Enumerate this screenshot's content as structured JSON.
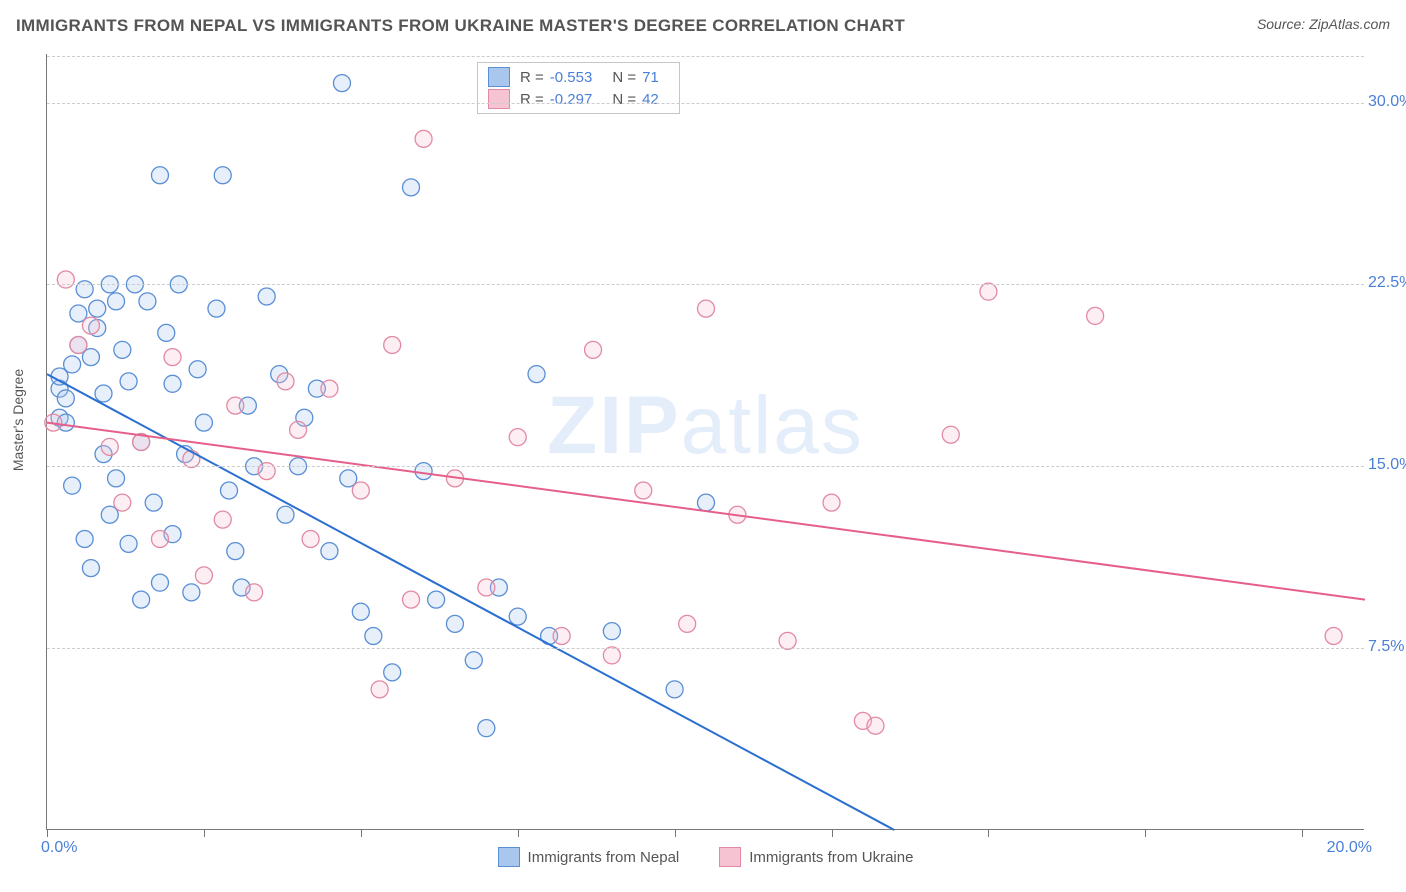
{
  "header": {
    "title": "IMMIGRANTS FROM NEPAL VS IMMIGRANTS FROM UKRAINE MASTER'S DEGREE CORRELATION CHART",
    "source_prefix": "Source: ",
    "source_name": "ZipAtlas.com"
  },
  "chart": {
    "type": "scatter",
    "ylabel": "Master's Degree",
    "xlim": [
      0,
      21
    ],
    "ylim": [
      0,
      32
    ],
    "x_ticks": [
      0,
      2.5,
      5,
      7.5,
      10,
      12.5,
      15,
      17.5,
      20
    ],
    "x_tick_labels": {
      "0": "0.0%",
      "20": "20.0%"
    },
    "y_gridlines": [
      7.5,
      15,
      22.5,
      30
    ],
    "y_tick_labels": {
      "7.5": "7.5%",
      "15": "15.0%",
      "22.5": "22.5%",
      "30": "30.0%"
    },
    "background_color": "#ffffff",
    "grid_color": "#cccccc",
    "axis_color": "#777777",
    "label_color": "#4a7fd8",
    "marker_radius": 8.5,
    "marker_stroke_width": 1.3,
    "marker_fill_opacity": 0.28,
    "line_width": 2,
    "watermark_text_bold": "ZIP",
    "watermark_text_rest": "atlas",
    "watermark_color": "#cfe0f7",
    "series": [
      {
        "id": "nepal",
        "label": "Immigrants from Nepal",
        "color_stroke": "#5a8fd6",
        "color_fill": "#a9c7ec",
        "line_color": "#2b6fd0",
        "R": "-0.553",
        "N": "71",
        "trend": {
          "x1": 0,
          "y1": 18.8,
          "x2": 13.5,
          "y2": 0
        },
        "points": [
          [
            0.2,
            17.0
          ],
          [
            0.2,
            18.2
          ],
          [
            0.2,
            18.7
          ],
          [
            0.3,
            16.8
          ],
          [
            0.3,
            17.8
          ],
          [
            0.4,
            14.2
          ],
          [
            0.4,
            19.2
          ],
          [
            0.5,
            20.0
          ],
          [
            0.5,
            21.3
          ],
          [
            0.6,
            22.3
          ],
          [
            0.6,
            12.0
          ],
          [
            0.7,
            19.5
          ],
          [
            0.7,
            10.8
          ],
          [
            0.8,
            20.7
          ],
          [
            0.8,
            21.5
          ],
          [
            0.9,
            15.5
          ],
          [
            0.9,
            18.0
          ],
          [
            1.0,
            22.5
          ],
          [
            1.0,
            13.0
          ],
          [
            1.1,
            14.5
          ],
          [
            1.1,
            21.8
          ],
          [
            1.2,
            19.8
          ],
          [
            1.3,
            11.8
          ],
          [
            1.3,
            18.5
          ],
          [
            1.4,
            22.5
          ],
          [
            1.5,
            9.5
          ],
          [
            1.5,
            16.0
          ],
          [
            1.6,
            21.8
          ],
          [
            1.7,
            13.5
          ],
          [
            1.8,
            27.0
          ],
          [
            1.8,
            10.2
          ],
          [
            1.9,
            20.5
          ],
          [
            2.0,
            12.2
          ],
          [
            2.0,
            18.4
          ],
          [
            2.1,
            22.5
          ],
          [
            2.2,
            15.5
          ],
          [
            2.3,
            9.8
          ],
          [
            2.4,
            19.0
          ],
          [
            2.5,
            16.8
          ],
          [
            2.7,
            21.5
          ],
          [
            2.8,
            27.0
          ],
          [
            2.9,
            14.0
          ],
          [
            3.0,
            11.5
          ],
          [
            3.1,
            10.0
          ],
          [
            3.2,
            17.5
          ],
          [
            3.3,
            15.0
          ],
          [
            3.5,
            22.0
          ],
          [
            3.7,
            18.8
          ],
          [
            3.8,
            13.0
          ],
          [
            4.0,
            15.0
          ],
          [
            4.1,
            17.0
          ],
          [
            4.3,
            18.2
          ],
          [
            4.5,
            11.5
          ],
          [
            4.7,
            30.8
          ],
          [
            4.8,
            14.5
          ],
          [
            5.0,
            9.0
          ],
          [
            5.2,
            8.0
          ],
          [
            5.5,
            6.5
          ],
          [
            5.8,
            26.5
          ],
          [
            6.0,
            14.8
          ],
          [
            6.2,
            9.5
          ],
          [
            6.5,
            8.5
          ],
          [
            6.8,
            7.0
          ],
          [
            7.0,
            4.2
          ],
          [
            7.2,
            10.0
          ],
          [
            7.5,
            8.8
          ],
          [
            7.8,
            18.8
          ],
          [
            8.0,
            8.0
          ],
          [
            9.0,
            8.2
          ],
          [
            10.0,
            5.8
          ],
          [
            10.5,
            13.5
          ]
        ]
      },
      {
        "id": "ukraine",
        "label": "Immigrants from Ukraine",
        "color_stroke": "#e28aa3",
        "color_fill": "#f5c3d1",
        "line_color": "#e65f8a",
        "R": "-0.297",
        "N": "42",
        "trend": {
          "x1": 0,
          "y1": 16.8,
          "x2": 21,
          "y2": 9.5
        },
        "points": [
          [
            0.1,
            16.8
          ],
          [
            0.3,
            22.7
          ],
          [
            0.5,
            20.0
          ],
          [
            0.7,
            20.8
          ],
          [
            1.0,
            15.8
          ],
          [
            1.2,
            13.5
          ],
          [
            1.5,
            16.0
          ],
          [
            1.8,
            12.0
          ],
          [
            2.0,
            19.5
          ],
          [
            2.3,
            15.3
          ],
          [
            2.5,
            10.5
          ],
          [
            2.8,
            12.8
          ],
          [
            3.0,
            17.5
          ],
          [
            3.3,
            9.8
          ],
          [
            3.5,
            14.8
          ],
          [
            3.8,
            18.5
          ],
          [
            4.0,
            16.5
          ],
          [
            4.2,
            12.0
          ],
          [
            4.5,
            18.2
          ],
          [
            5.0,
            14.0
          ],
          [
            5.3,
            5.8
          ],
          [
            5.5,
            20.0
          ],
          [
            5.8,
            9.5
          ],
          [
            6.0,
            28.5
          ],
          [
            6.5,
            14.5
          ],
          [
            7.0,
            10.0
          ],
          [
            7.5,
            16.2
          ],
          [
            8.2,
            8.0
          ],
          [
            8.7,
            19.8
          ],
          [
            9.0,
            7.2
          ],
          [
            9.5,
            14.0
          ],
          [
            10.2,
            8.5
          ],
          [
            10.5,
            21.5
          ],
          [
            11.0,
            13.0
          ],
          [
            11.8,
            7.8
          ],
          [
            12.5,
            13.5
          ],
          [
            13.0,
            4.5
          ],
          [
            13.2,
            4.3
          ],
          [
            14.4,
            16.3
          ],
          [
            15.0,
            22.2
          ],
          [
            16.7,
            21.2
          ],
          [
            20.5,
            8.0
          ]
        ]
      }
    ],
    "stats_legend": {
      "R_label": "R =",
      "N_label": "N ="
    },
    "bottom_legend_labels": [
      "Immigrants from Nepal",
      "Immigrants from Ukraine"
    ]
  }
}
